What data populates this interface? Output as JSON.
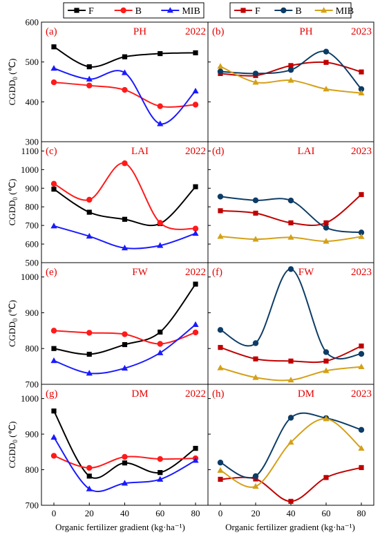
{
  "figure": {
    "xlabel": "Organic fertilizer gradient (kg·ha⁻¹)",
    "ylabel_main": "CGDD",
    "ylabel_sub": "0",
    "ylabel_unit": " (℃)",
    "colors": {
      "panel_text": "#e60000",
      "axis": "#000000"
    }
  },
  "legends": [
    {
      "position": "top-left",
      "entries": [
        {
          "name": "F",
          "color": "#000000",
          "marker": "square"
        },
        {
          "name": "B",
          "color": "#ff1a1a",
          "marker": "circle"
        },
        {
          "name": "MIB",
          "color": "#1a1aff",
          "marker": "triangle"
        }
      ]
    },
    {
      "position": "top-right",
      "entries": [
        {
          "name": "F",
          "color": "#c00000",
          "marker": "square"
        },
        {
          "name": "B",
          "color": "#0d3c66",
          "marker": "circle"
        },
        {
          "name": "MIB",
          "color": "#d4a017",
          "marker": "triangle"
        }
      ]
    }
  ],
  "chart_data": [
    {
      "type": "line",
      "panel": "(a)",
      "trait": "PH",
      "year": "2022",
      "x": [
        0,
        20,
        40,
        60,
        80
      ],
      "ylim": [
        300,
        600
      ],
      "yticks": [
        300,
        400,
        500,
        600
      ],
      "series": [
        {
          "name": "F",
          "color": "#000000",
          "marker": "square",
          "values": [
            538,
            488,
            513,
            521,
            523
          ]
        },
        {
          "name": "B",
          "color": "#ff1a1a",
          "marker": "circle",
          "values": [
            449,
            441,
            430,
            389,
            393
          ]
        },
        {
          "name": "MIB",
          "color": "#1a1aff",
          "marker": "triangle",
          "values": [
            484,
            457,
            473,
            345,
            427
          ]
        }
      ]
    },
    {
      "type": "line",
      "panel": "(b)",
      "trait": "PH",
      "year": "2023",
      "x": [
        0,
        20,
        40,
        60,
        80
      ],
      "ylim": [
        300,
        600
      ],
      "yticks": [
        300,
        400,
        500,
        600
      ],
      "series": [
        {
          "name": "F",
          "color": "#c00000",
          "marker": "square",
          "values": [
            471,
            466,
            491,
            499,
            475
          ]
        },
        {
          "name": "B",
          "color": "#0d3c66",
          "marker": "circle",
          "values": [
            476,
            471,
            480,
            526,
            432
          ]
        },
        {
          "name": "MIB",
          "color": "#d4a017",
          "marker": "triangle",
          "values": [
            489,
            449,
            454,
            432,
            422
          ]
        }
      ]
    },
    {
      "type": "line",
      "panel": "(c)",
      "trait": "LAI",
      "year": "2022",
      "x": [
        0,
        20,
        40,
        60,
        80
      ],
      "ylim": [
        500,
        1150
      ],
      "yticks": [
        500,
        600,
        700,
        800,
        900,
        1000,
        1100
      ],
      "series": [
        {
          "name": "F",
          "color": "#000000",
          "marker": "square",
          "values": [
            895,
            771,
            733,
            710,
            908
          ]
        },
        {
          "name": "B",
          "color": "#ff1a1a",
          "marker": "circle",
          "values": [
            924,
            838,
            1034,
            714,
            683
          ]
        },
        {
          "name": "MIB",
          "color": "#1a1aff",
          "marker": "triangle",
          "values": [
            697,
            642,
            579,
            592,
            657
          ]
        }
      ]
    },
    {
      "type": "line",
      "panel": "(d)",
      "trait": "LAI",
      "year": "2023",
      "x": [
        0,
        20,
        40,
        60,
        80
      ],
      "ylim": [
        500,
        1150
      ],
      "yticks": [
        500,
        600,
        700,
        800,
        900,
        1000,
        1100
      ],
      "series": [
        {
          "name": "F",
          "color": "#c00000",
          "marker": "square",
          "values": [
            779,
            766,
            714,
            714,
            866
          ]
        },
        {
          "name": "B",
          "color": "#0d3c66",
          "marker": "circle",
          "values": [
            855,
            835,
            834,
            688,
            662
          ]
        },
        {
          "name": "MIB",
          "color": "#d4a017",
          "marker": "triangle",
          "values": [
            641,
            626,
            636,
            615,
            640
          ]
        }
      ]
    },
    {
      "type": "line",
      "panel": "(e)",
      "trait": "FW",
      "year": "2022",
      "x": [
        0,
        20,
        40,
        60,
        80
      ],
      "ylim": [
        700,
        1040
      ],
      "yticks": [
        700,
        800,
        900,
        1000
      ],
      "series": [
        {
          "name": "F",
          "color": "#000000",
          "marker": "square",
          "values": [
            800,
            784,
            811,
            846,
            980
          ]
        },
        {
          "name": "B",
          "color": "#ff1a1a",
          "marker": "circle",
          "values": [
            850,
            844,
            840,
            813,
            845
          ]
        },
        {
          "name": "MIB",
          "color": "#1a1aff",
          "marker": "triangle",
          "values": [
            766,
            731,
            745,
            788,
            867
          ]
        }
      ]
    },
    {
      "type": "line",
      "panel": "(f)",
      "trait": "FW",
      "year": "2023",
      "x": [
        0,
        20,
        40,
        60,
        80
      ],
      "ylim": [
        700,
        1040
      ],
      "yticks": [
        700,
        800,
        900,
        1000
      ],
      "series": [
        {
          "name": "F",
          "color": "#c00000",
          "marker": "square",
          "values": [
            803,
            771,
            765,
            765,
            807
          ]
        },
        {
          "name": "B",
          "color": "#0d3c66",
          "marker": "circle",
          "values": [
            852,
            815,
            1022,
            790,
            785
          ]
        },
        {
          "name": "MIB",
          "color": "#d4a017",
          "marker": "triangle",
          "values": [
            746,
            719,
            712,
            738,
            749
          ]
        }
      ]
    },
    {
      "type": "line",
      "panel": "(g)",
      "trait": "DM",
      "year": "2022",
      "x": [
        0,
        20,
        40,
        60,
        80
      ],
      "ylim": [
        700,
        1040
      ],
      "yticks": [
        700,
        800,
        900,
        1000
      ],
      "series": [
        {
          "name": "F",
          "color": "#000000",
          "marker": "square",
          "values": [
            965,
            782,
            819,
            792,
            860
          ]
        },
        {
          "name": "B",
          "color": "#ff1a1a",
          "marker": "circle",
          "values": [
            839,
            805,
            836,
            830,
            832
          ]
        },
        {
          "name": "MIB",
          "color": "#1a1aff",
          "marker": "triangle",
          "values": [
            891,
            746,
            762,
            773,
            826
          ]
        }
      ]
    },
    {
      "type": "line",
      "panel": "(h)",
      "trait": "DM",
      "year": "2023",
      "x": [
        0,
        20,
        40,
        60,
        80
      ],
      "ylim": [
        700,
        1040
      ],
      "yticks": [
        700,
        800,
        900,
        1000
      ],
      "series": [
        {
          "name": "F",
          "color": "#c00000",
          "marker": "square",
          "values": [
            773,
            774,
            711,
            778,
            806
          ]
        },
        {
          "name": "B",
          "color": "#0d3c66",
          "marker": "circle",
          "values": [
            820,
            782,
            946,
            945,
            912
          ]
        },
        {
          "name": "MIB",
          "color": "#d4a017",
          "marker": "triangle",
          "values": [
            798,
            753,
            877,
            943,
            860
          ]
        }
      ]
    }
  ]
}
